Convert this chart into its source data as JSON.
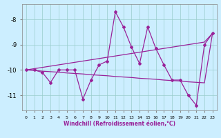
{
  "x": [
    0,
    1,
    2,
    3,
    4,
    5,
    6,
    7,
    8,
    9,
    10,
    11,
    12,
    13,
    14,
    15,
    16,
    17,
    18,
    19,
    20,
    21,
    22,
    23
  ],
  "y_main": [
    -10.0,
    -10.0,
    -10.1,
    -10.5,
    -10.0,
    -10.0,
    -10.0,
    -11.15,
    -10.4,
    -9.8,
    -9.65,
    -7.7,
    -8.3,
    -9.1,
    -9.75,
    -8.3,
    -9.15,
    -9.8,
    -10.4,
    -10.4,
    -11.0,
    -11.4,
    -9.0,
    -8.55
  ],
  "y_upper": [
    -10.0,
    -9.95,
    -9.9,
    -9.85,
    -9.8,
    -9.75,
    -9.7,
    -9.65,
    -9.6,
    -9.55,
    -9.5,
    -9.45,
    -9.4,
    -9.35,
    -9.3,
    -9.25,
    -9.2,
    -9.15,
    -9.1,
    -9.05,
    -9.0,
    -8.95,
    -8.9,
    -8.55
  ],
  "y_lower": [
    -10.0,
    -10.02,
    -10.05,
    -10.07,
    -10.09,
    -10.12,
    -10.14,
    -10.16,
    -10.19,
    -10.21,
    -10.23,
    -10.26,
    -10.28,
    -10.3,
    -10.33,
    -10.35,
    -10.37,
    -10.4,
    -10.42,
    -10.44,
    -10.47,
    -10.49,
    -10.51,
    -8.55
  ],
  "line_color": "#992299",
  "bg_color": "#cceeff",
  "grid_color": "#99cccc",
  "xlabel": "Windchill (Refroidissement éolien,°C)",
  "ylim": [
    -11.6,
    -7.4
  ],
  "xlim": [
    -0.5,
    23.5
  ],
  "yticks": [
    -11,
    -10,
    -9,
    -8
  ],
  "xticks": [
    0,
    1,
    2,
    3,
    4,
    5,
    6,
    7,
    8,
    9,
    10,
    11,
    12,
    13,
    14,
    15,
    16,
    17,
    18,
    19,
    20,
    21,
    22,
    23
  ]
}
